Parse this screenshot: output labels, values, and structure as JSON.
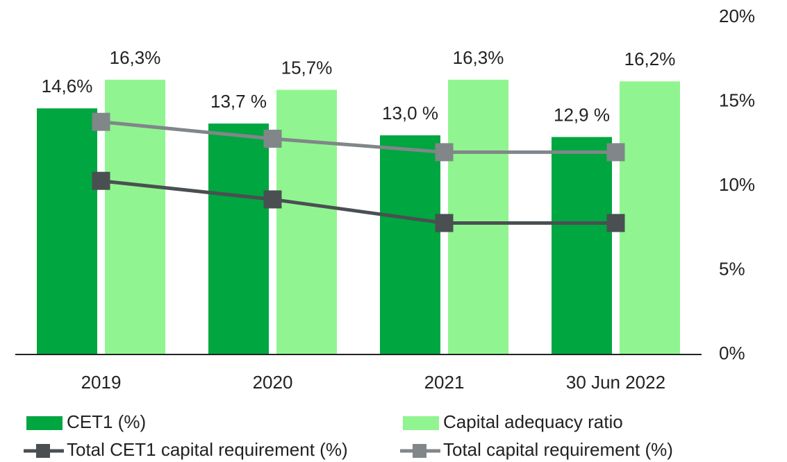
{
  "chart_data": {
    "type": "bar",
    "categories": [
      "2019",
      "2020",
      "2021",
      "30 Jun 2022"
    ],
    "series": [
      {
        "name": "CET1 (%)",
        "kind": "bar",
        "color": "#00a63f",
        "values": [
          14.6,
          13.7,
          13.0,
          12.9
        ],
        "value_labels": [
          "14,6%",
          "13,7 %",
          "13,0 %",
          "12,9 %"
        ]
      },
      {
        "name": "Capital adequacy ratio",
        "kind": "bar",
        "color": "#90f590",
        "values": [
          16.3,
          15.7,
          16.3,
          16.2
        ],
        "value_labels": [
          "16,3%",
          "15,7%",
          "16,3%",
          "16,2%"
        ]
      },
      {
        "name": "Total CET1 capital requirement (%)",
        "kind": "line",
        "color": "#4a4f52",
        "values": [
          10.3,
          9.2,
          7.8,
          7.8
        ]
      },
      {
        "name": "Total capital requirement (%)",
        "kind": "line",
        "color": "#818689",
        "values": [
          13.8,
          12.8,
          12.0,
          12.0
        ]
      }
    ],
    "ylim": [
      0,
      20
    ],
    "yticks": [
      {
        "value": 0,
        "label": "0%"
      },
      {
        "value": 5,
        "label": "5%"
      },
      {
        "value": 10,
        "label": "10%"
      },
      {
        "value": 15,
        "label": "15%"
      },
      {
        "value": 20,
        "label": "20%"
      }
    ],
    "y_axis_side": "right",
    "grid": false
  }
}
